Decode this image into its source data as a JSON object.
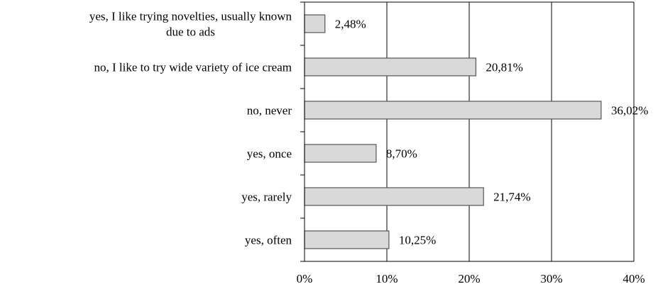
{
  "chart_data": {
    "type": "bar",
    "orientation": "horizontal",
    "categories": [
      [
        "yes, I like trying novelties, usually known",
        "due to ads"
      ],
      [
        "no, I like to try wide variety of ice cream"
      ],
      [
        "no, never"
      ],
      [
        "yes, once"
      ],
      [
        "yes, rarely"
      ],
      [
        "yes, often"
      ]
    ],
    "values": [
      2.48,
      20.81,
      36.02,
      8.7,
      21.74,
      10.25
    ],
    "value_labels": [
      "2,48%",
      "20,81%",
      "36,02%",
      "8,70%",
      "21,74%",
      "10,25%"
    ],
    "xlim": [
      0,
      40
    ],
    "xticks": [
      0,
      10,
      20,
      30,
      40
    ],
    "xtick_labels": [
      "0%",
      "10%",
      "20%",
      "30%",
      "40%"
    ],
    "grid": "vertical",
    "legend": "none",
    "title": "",
    "xlabel": "",
    "ylabel": "",
    "colors": {
      "bar_fill": "#d9d9d9",
      "bar_stroke": "#555555",
      "grid": "#000000",
      "axis": "#000000"
    }
  }
}
